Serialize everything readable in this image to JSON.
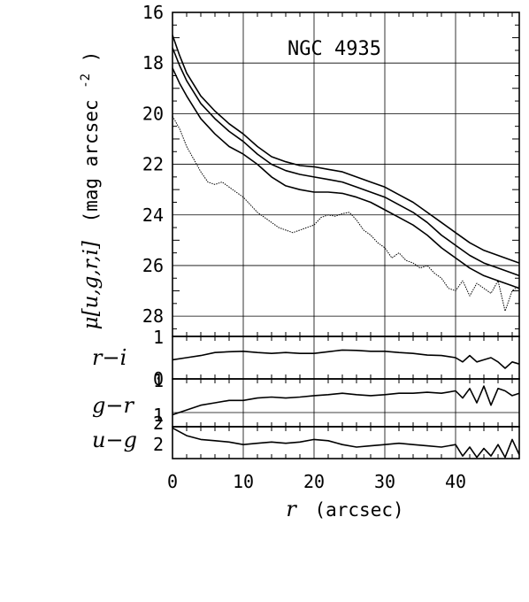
{
  "chart_data": {
    "type": "line",
    "title": "NGC 4935",
    "xlabel_var": "r",
    "xlabel_unit": "(arcsec)",
    "xlim": [
      0,
      49
    ],
    "x_ticks": [
      0,
      10,
      20,
      30,
      40
    ],
    "panels": [
      {
        "id": "surface-brightness",
        "ylabel_var": "μ[u,g,r,i]",
        "ylabel_unit": "(mag arcsec",
        "ylabel_exp": "-2",
        "ylabel_close": ")",
        "ylim": [
          16,
          28.8
        ],
        "inverted": true,
        "y_ticks": [
          16,
          18,
          20,
          22,
          24,
          26,
          28
        ],
        "series": [
          {
            "style": "solid",
            "x": [
              0,
              1,
              2,
              4,
              6,
              8,
              10,
              12,
              14,
              16,
              18,
              20,
              22,
              24,
              26,
              28,
              30,
              32,
              34,
              36,
              38,
              40,
              42,
              44,
              46,
              48,
              49
            ],
            "y": [
              16.9,
              17.7,
              18.4,
              19.3,
              19.9,
              20.4,
              20.8,
              21.3,
              21.7,
              21.9,
              22.05,
              22.1,
              22.2,
              22.3,
              22.5,
              22.7,
              22.9,
              23.2,
              23.5,
              23.9,
              24.3,
              24.7,
              25.1,
              25.4,
              25.6,
              25.8,
              25.9
            ]
          },
          {
            "style": "solid",
            "x": [
              0,
              1,
              2,
              4,
              6,
              8,
              10,
              12,
              14,
              16,
              18,
              20,
              22,
              24,
              26,
              28,
              30,
              32,
              34,
              36,
              38,
              40,
              42,
              44,
              46,
              48,
              49
            ],
            "y": [
              17.4,
              18.1,
              18.7,
              19.6,
              20.2,
              20.7,
              21.1,
              21.6,
              22.0,
              22.25,
              22.4,
              22.5,
              22.6,
              22.7,
              22.9,
              23.1,
              23.3,
              23.6,
              23.9,
              24.3,
              24.8,
              25.2,
              25.6,
              25.9,
              26.1,
              26.3,
              26.4
            ]
          },
          {
            "style": "solid",
            "x": [
              0,
              1,
              2,
              4,
              6,
              8,
              10,
              12,
              14,
              16,
              18,
              20,
              22,
              24,
              26,
              28,
              30,
              32,
              34,
              36,
              38,
              40,
              42,
              44,
              46,
              48,
              49
            ],
            "y": [
              18.2,
              18.8,
              19.3,
              20.2,
              20.8,
              21.3,
              21.6,
              22.0,
              22.5,
              22.85,
              23.0,
              23.1,
              23.1,
              23.15,
              23.3,
              23.5,
              23.8,
              24.1,
              24.4,
              24.8,
              25.3,
              25.7,
              26.1,
              26.4,
              26.6,
              26.8,
              26.9
            ]
          },
          {
            "style": "dotted",
            "x": [
              0,
              1,
              2,
              3,
              4,
              5,
              6,
              7,
              8,
              9,
              10,
              11,
              12,
              13,
              14,
              15,
              16,
              17,
              18,
              19,
              20,
              21,
              22,
              23,
              24,
              25,
              26,
              27,
              28,
              29,
              30,
              31,
              32,
              33,
              34,
              35,
              36,
              37,
              38,
              39,
              40,
              41,
              42,
              43,
              44,
              45,
              46,
              47,
              48,
              49
            ],
            "y": [
              20.1,
              20.6,
              21.3,
              21.8,
              22.3,
              22.7,
              22.8,
              22.7,
              22.9,
              23.1,
              23.3,
              23.6,
              23.9,
              24.1,
              24.3,
              24.5,
              24.6,
              24.7,
              24.6,
              24.5,
              24.4,
              24.1,
              24.0,
              24.05,
              23.95,
              23.9,
              24.2,
              24.6,
              24.8,
              25.1,
              25.3,
              25.7,
              25.5,
              25.8,
              25.9,
              26.1,
              26.0,
              26.3,
              26.5,
              26.9,
              27.0,
              26.6,
              27.2,
              26.7,
              26.9,
              27.1,
              26.6,
              27.8,
              27.0,
              26.8
            ]
          }
        ]
      },
      {
        "id": "r-i",
        "ylabel": "r−i",
        "ylim": [
          0,
          1
        ],
        "inverted": false,
        "y_ticks": [
          0,
          1
        ],
        "series": [
          {
            "style": "solid",
            "x": [
              0,
              2,
              4,
              6,
              8,
              10,
              12,
              14,
              16,
              18,
              20,
              22,
              24,
              26,
              28,
              30,
              32,
              34,
              36,
              38,
              40,
              41,
              42,
              43,
              44,
              45,
              46,
              47,
              48,
              49
            ],
            "y": [
              0.55,
              0.5,
              0.45,
              0.38,
              0.36,
              0.35,
              0.38,
              0.4,
              0.38,
              0.4,
              0.4,
              0.36,
              0.32,
              0.33,
              0.35,
              0.35,
              0.38,
              0.4,
              0.44,
              0.45,
              0.5,
              0.6,
              0.45,
              0.6,
              0.55,
              0.5,
              0.6,
              0.75,
              0.6,
              0.65
            ]
          }
        ]
      },
      {
        "id": "g-r",
        "ylabel": "g−r",
        "ylim": [
          2,
          1
        ],
        "inverted": true,
        "y_ticks": [
          1,
          2
        ],
        "series": [
          {
            "style": "solid",
            "x": [
              0,
              2,
              4,
              6,
              8,
              10,
              12,
              14,
              16,
              18,
              20,
              22,
              24,
              26,
              28,
              30,
              32,
              34,
              36,
              38,
              40,
              41,
              42,
              43,
              44,
              45,
              46,
              47,
              48,
              49
            ],
            "y": [
              1.25,
              1.35,
              1.45,
              1.5,
              1.55,
              1.55,
              1.6,
              1.62,
              1.6,
              1.62,
              1.65,
              1.67,
              1.7,
              1.67,
              1.65,
              1.67,
              1.7,
              1.7,
              1.72,
              1.7,
              1.75,
              1.6,
              1.8,
              1.5,
              1.85,
              1.45,
              1.8,
              1.75,
              1.65,
              1.7
            ]
          }
        ]
      },
      {
        "id": "u-g",
        "ylabel": "u−g",
        "ylim": [
          2,
          0.75
        ],
        "inverted": true,
        "y_ticks": [
          1,
          2
        ],
        "series": [
          {
            "style": "solid",
            "x": [
              0,
              2,
              4,
              6,
              8,
              10,
              12,
              14,
              16,
              18,
              20,
              22,
              24,
              26,
              28,
              30,
              32,
              34,
              36,
              38,
              40,
              41,
              42,
              43,
              44,
              45,
              46,
              47,
              48,
              49
            ],
            "y": [
              1.95,
              1.65,
              1.5,
              1.45,
              1.4,
              1.3,
              1.35,
              1.4,
              1.35,
              1.4,
              1.5,
              1.45,
              1.3,
              1.2,
              1.25,
              1.3,
              1.35,
              1.3,
              1.25,
              1.2,
              1.3,
              0.85,
              1.2,
              0.8,
              1.15,
              0.85,
              1.3,
              0.8,
              1.5,
              0.9
            ]
          }
        ]
      }
    ]
  }
}
